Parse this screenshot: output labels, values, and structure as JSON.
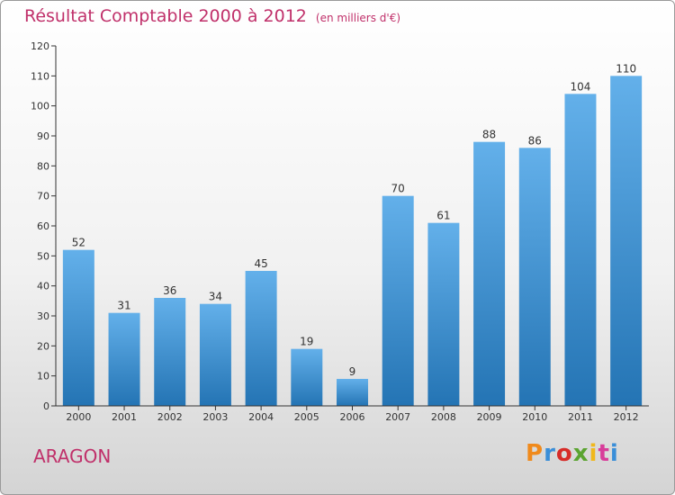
{
  "title": "Résultat Comptable 2000 à 2012",
  "subtitle": "(en milliers d'€)",
  "place": "ARAGON",
  "logo": {
    "text": "Proxiti",
    "colors": [
      "#f08a1c",
      "#3a8ed8",
      "#d72c28",
      "#5ba431",
      "#f0b81c",
      "#d83d9a",
      "#3a8ed8"
    ]
  },
  "colors": {
    "title": "#c0306a",
    "bar_top": "#63b0ea",
    "bar_bottom": "#2474b4",
    "axis": "#333333"
  },
  "chart_data": {
    "type": "bar",
    "categories": [
      "2000",
      "2001",
      "2002",
      "2003",
      "2004",
      "2005",
      "2006",
      "2007",
      "2008",
      "2009",
      "2010",
      "2011",
      "2012"
    ],
    "values": [
      52,
      31,
      36,
      34,
      45,
      19,
      9,
      70,
      61,
      88,
      86,
      104,
      110
    ],
    "ylim": [
      0,
      120
    ],
    "yticks": [
      0,
      10,
      20,
      30,
      40,
      50,
      60,
      70,
      80,
      90,
      100,
      110,
      120
    ],
    "grid": false,
    "legend": "none"
  }
}
